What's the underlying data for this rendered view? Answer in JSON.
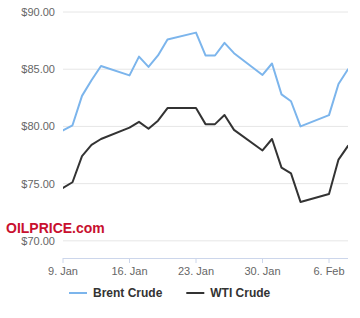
{
  "chart_data": {
    "type": "line",
    "annotations": [
      "OILPRICE.com"
    ],
    "x": [
      9,
      10,
      11,
      12,
      13,
      16,
      17,
      18,
      19,
      20,
      23,
      24,
      25,
      26,
      27,
      30,
      31,
      32,
      33,
      34,
      37,
      38,
      39
    ],
    "xlim": [
      9,
      39
    ],
    "xticks": [
      {
        "value": 9,
        "label": "9. Jan"
      },
      {
        "value": 16,
        "label": "16. Jan"
      },
      {
        "value": 23,
        "label": "23. Jan"
      },
      {
        "value": 30,
        "label": "30. Jan"
      },
      {
        "value": 37,
        "label": "6. Feb"
      }
    ],
    "ylim": [
      68.5,
      90
    ],
    "yticks": [
      {
        "value": 70,
        "label": "$70.00"
      },
      {
        "value": 75,
        "label": "$75.00"
      },
      {
        "value": 80,
        "label": "$80.00"
      },
      {
        "value": 85,
        "label": "$85.00"
      },
      {
        "value": 90,
        "label": "$90.00"
      }
    ],
    "grid": true,
    "legend": "bottom",
    "series": [
      {
        "name": "Brent Crude",
        "color": "#7cb5ec",
        "values": [
          79.65,
          80.1,
          82.67,
          84.03,
          85.28,
          84.46,
          86.1,
          85.2,
          86.2,
          87.6,
          88.2,
          86.2,
          86.2,
          87.3,
          86.4,
          84.5,
          85.5,
          82.8,
          82.2,
          80.0,
          80.99,
          83.7,
          85.0
        ]
      },
      {
        "name": "WTI Crude",
        "color": "#333333",
        "values": [
          74.63,
          75.12,
          77.41,
          78.39,
          78.9,
          79.9,
          80.4,
          79.8,
          80.5,
          81.6,
          81.6,
          80.2,
          80.2,
          81.0,
          79.7,
          77.9,
          78.9,
          76.4,
          75.9,
          73.4,
          74.1,
          77.1,
          78.3
        ]
      }
    ]
  }
}
